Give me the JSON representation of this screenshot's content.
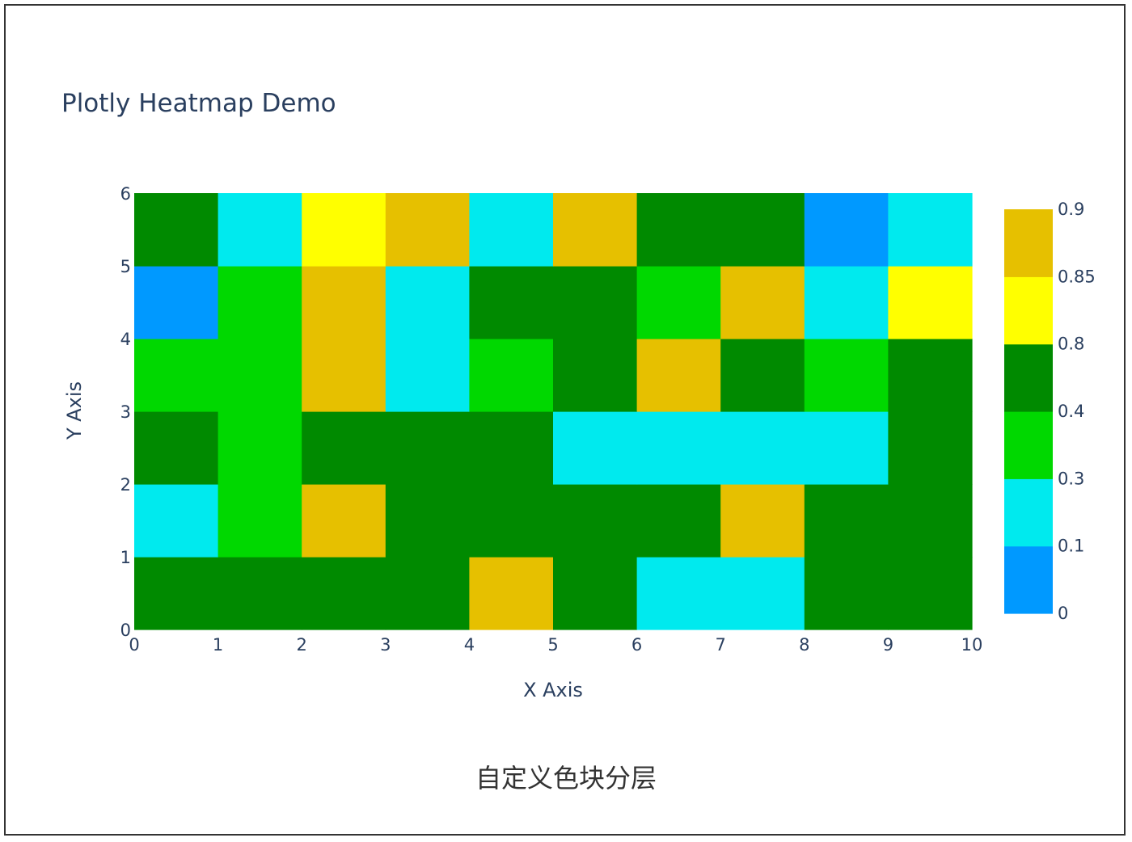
{
  "chart_data": {
    "type": "heatmap",
    "title": "Plotly Heatmap Demo",
    "xlabel": "X Axis",
    "ylabel": "Y Axis",
    "xlim": [
      0,
      10
    ],
    "ylim": [
      0,
      6
    ],
    "x_ticks": [
      "0",
      "1",
      "2",
      "3",
      "4",
      "5",
      "6",
      "7",
      "8",
      "9",
      "10"
    ],
    "y_ticks": [
      "0",
      "1",
      "2",
      "3",
      "4",
      "5",
      "6"
    ],
    "x_edges": [
      0,
      1,
      2,
      3,
      4,
      5,
      6,
      7,
      8,
      9,
      10
    ],
    "y_edges": [
      0,
      1,
      2,
      3,
      4,
      5,
      6
    ],
    "colorscale": [
      {
        "from": 0,
        "to": 0.1,
        "color": "#0099ff"
      },
      {
        "from": 0.1,
        "to": 0.3,
        "color": "#00eaee"
      },
      {
        "from": 0.3,
        "to": 0.4,
        "color": "#00d800"
      },
      {
        "from": 0.4,
        "to": 0.8,
        "color": "#008a00"
      },
      {
        "from": 0.8,
        "to": 0.85,
        "color": "#ffff00"
      },
      {
        "from": 0.85,
        "to": 0.9,
        "color": "#e6c000"
      }
    ],
    "colorbar_ticks": [
      "0",
      "0.1",
      "0.3",
      "0.4",
      "0.8",
      "0.85",
      "0.9"
    ],
    "z": [
      [
        0.6,
        0.6,
        0.6,
        0.6,
        0.87,
        0.6,
        0.2,
        0.2,
        0.6,
        0.6
      ],
      [
        0.2,
        0.35,
        0.87,
        0.6,
        0.6,
        0.6,
        0.6,
        0.87,
        0.6,
        0.6
      ],
      [
        0.6,
        0.35,
        0.6,
        0.6,
        0.6,
        0.2,
        0.2,
        0.2,
        0.2,
        0.6
      ],
      [
        0.35,
        0.35,
        0.87,
        0.2,
        0.35,
        0.6,
        0.87,
        0.6,
        0.35,
        0.6
      ],
      [
        0.05,
        0.35,
        0.87,
        0.2,
        0.6,
        0.6,
        0.35,
        0.87,
        0.2,
        0.82
      ],
      [
        0.6,
        0.2,
        0.82,
        0.87,
        0.2,
        0.87,
        0.6,
        0.6,
        0.05,
        0.2
      ]
    ]
  },
  "caption": "自定义色块分层"
}
